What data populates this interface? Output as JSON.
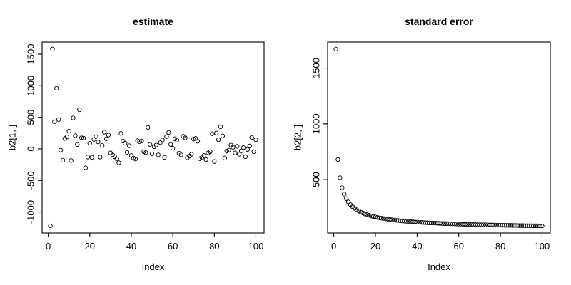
{
  "figure": {
    "background": "#ffffff",
    "foreground": "#000000",
    "marker": "open-circle",
    "grid": "off",
    "legend": "none"
  },
  "chart_data": [
    {
      "type": "scatter",
      "title": "estimate",
      "xlabel": "Index",
      "ylabel": "b2[1, ]",
      "xticks": [
        0,
        20,
        40,
        60,
        80,
        100
      ],
      "yticks": [
        -1000,
        -500,
        0,
        500,
        1000,
        1500
      ],
      "xlim": [
        -2.96,
        103.96
      ],
      "ylim": [
        -1332,
        1692
      ],
      "x": [
        1,
        2,
        3,
        4,
        5,
        6,
        7,
        8,
        9,
        10,
        11,
        12,
        13,
        14,
        15,
        16,
        17,
        18,
        19,
        20,
        21,
        22,
        23,
        24,
        25,
        26,
        27,
        28,
        29,
        30,
        31,
        32,
        33,
        34,
        35,
        36,
        37,
        38,
        39,
        40,
        41,
        42,
        43,
        44,
        45,
        46,
        47,
        48,
        49,
        50,
        51,
        52,
        53,
        54,
        55,
        56,
        57,
        58,
        59,
        60,
        61,
        62,
        63,
        64,
        65,
        66,
        67,
        68,
        69,
        70,
        71,
        72,
        73,
        74,
        75,
        76,
        77,
        78,
        79,
        80,
        81,
        82,
        83,
        84,
        85,
        86,
        87,
        88,
        89,
        90,
        91,
        92,
        93,
        94,
        95,
        96,
        97,
        98,
        99,
        100
      ],
      "values": [
        -1220,
        1580,
        430,
        960,
        465,
        -20,
        -180,
        165,
        190,
        280,
        -185,
        490,
        210,
        70,
        620,
        175,
        170,
        -300,
        -130,
        90,
        -135,
        150,
        195,
        110,
        -130,
        55,
        265,
        160,
        220,
        -65,
        -95,
        -125,
        -160,
        -220,
        245,
        125,
        90,
        -55,
        50,
        -105,
        -145,
        -160,
        130,
        115,
        125,
        -45,
        -60,
        340,
        70,
        -80,
        35,
        60,
        -95,
        100,
        140,
        -135,
        195,
        260,
        70,
        10,
        160,
        140,
        -70,
        -95,
        200,
        175,
        -140,
        -115,
        -85,
        155,
        165,
        120,
        -155,
        -140,
        -105,
        -170,
        -65,
        -45,
        240,
        -200,
        250,
        145,
        350,
        205,
        -145,
        -35,
        -20,
        60,
        25,
        -65,
        40,
        -85,
        -30,
        20,
        -125,
        -10,
        45,
        180,
        -45,
        145
      ]
    },
    {
      "type": "scatter",
      "title": "standard error",
      "xlabel": "Index",
      "ylabel": "b2[2, ]",
      "xticks": [
        0,
        20,
        40,
        60,
        80,
        100
      ],
      "yticks": [
        500,
        1000,
        1500
      ],
      "xlim": [
        -2.96,
        103.96
      ],
      "ylim": [
        21.6,
        1733.4
      ],
      "x": [
        1,
        2,
        3,
        4,
        5,
        6,
        7,
        8,
        9,
        10,
        11,
        12,
        13,
        14,
        15,
        16,
        17,
        18,
        19,
        20,
        21,
        22,
        23,
        24,
        25,
        26,
        27,
        28,
        29,
        30,
        31,
        32,
        33,
        34,
        35,
        36,
        37,
        38,
        39,
        40,
        41,
        42,
        43,
        44,
        45,
        46,
        47,
        48,
        49,
        50,
        51,
        52,
        53,
        54,
        55,
        56,
        57,
        58,
        59,
        60,
        61,
        62,
        63,
        64,
        65,
        66,
        67,
        68,
        69,
        70,
        71,
        72,
        73,
        74,
        75,
        76,
        77,
        78,
        79,
        80,
        81,
        82,
        83,
        84,
        85,
        86,
        87,
        88,
        89,
        90,
        91,
        92,
        93,
        94,
        95,
        96,
        97,
        98,
        99,
        100
      ],
      "values": [
        1670,
        680,
        517,
        427,
        370,
        330,
        300,
        276,
        257,
        242,
        229,
        218,
        208,
        200,
        192,
        186,
        180,
        174,
        169,
        165,
        161,
        157,
        154,
        151,
        148,
        145,
        142,
        140,
        137,
        135,
        133,
        131,
        129,
        128,
        126,
        125,
        123,
        122,
        120,
        119,
        118,
        117,
        115,
        114,
        113,
        112,
        111,
        111,
        110,
        109,
        108,
        107,
        106,
        106,
        105,
        104,
        103,
        103,
        102,
        101,
        101,
        100,
        99,
        99,
        98,
        98,
        97,
        97,
        96,
        96,
        95,
        95,
        94,
        94,
        94,
        93,
        93,
        92,
        92,
        92,
        91,
        91,
        90,
        90,
        90,
        89,
        89,
        89,
        88,
        88,
        88,
        87,
        87,
        87,
        87,
        86,
        86,
        86,
        85,
        85
      ]
    }
  ]
}
